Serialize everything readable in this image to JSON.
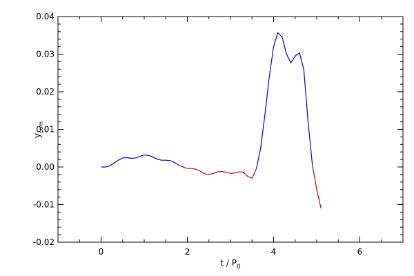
{
  "chart_data": {
    "type": "line",
    "xlabel": {
      "text": "t / P",
      "sub": "0"
    },
    "ylabel": {
      "text": "y",
      "sub": "com"
    },
    "x": [
      0,
      0.1,
      0.2,
      0.3,
      0.4,
      0.5,
      0.6,
      0.7,
      0.8,
      0.9,
      1.0,
      1.1,
      1.2,
      1.3,
      1.4,
      1.5,
      1.6,
      1.7,
      1.8,
      1.9,
      2.0,
      2.1,
      2.2,
      2.3,
      2.4,
      2.5,
      2.6,
      2.7,
      2.8,
      2.9,
      3.0,
      3.1,
      3.2,
      3.3,
      3.4,
      3.5,
      3.6,
      3.7,
      3.8,
      3.9,
      4.0,
      4.1,
      4.2,
      4.3,
      4.4,
      4.5,
      4.6,
      4.7,
      4.8,
      4.9,
      5.0,
      5.1
    ],
    "series": [
      {
        "color": "#0000cc",
        "values": [
          0,
          0,
          0.0003,
          0.001,
          0.0018,
          0.0024,
          0.0025,
          0.0023,
          0.0024,
          0.0028,
          0.0032,
          0.0031,
          0.0026,
          0.0021,
          0.0018,
          0.0018,
          0.0017,
          0.0012,
          0.0005,
          0,
          null,
          null,
          null,
          null,
          null,
          null,
          null,
          null,
          null,
          null,
          null,
          null,
          null,
          null,
          null,
          null,
          -0.0005,
          0.005,
          0.014,
          0.024,
          0.032,
          0.0357,
          0.0345,
          0.03,
          0.0277,
          0.0295,
          0.0303,
          0.026,
          0.012,
          0.0005,
          null,
          null
        ]
      },
      {
        "color": "#cc0000",
        "values": [
          null,
          null,
          null,
          null,
          null,
          null,
          null,
          null,
          null,
          null,
          null,
          null,
          null,
          null,
          null,
          null,
          null,
          null,
          null,
          0,
          -0.0004,
          -0.0004,
          -0.0006,
          -0.0011,
          -0.0018,
          -0.002,
          -0.0017,
          -0.0013,
          -0.0012,
          -0.0014,
          -0.0017,
          -0.0016,
          -0.0013,
          -0.0014,
          -0.0025,
          -0.003,
          -0.0005,
          null,
          null,
          null,
          null,
          null,
          null,
          null,
          null,
          null,
          null,
          null,
          null,
          0.0005,
          -0.006,
          -0.011
        ]
      }
    ],
    "xlim": [
      -1,
      7
    ],
    "xticks": [
      0,
      2,
      4,
      6
    ],
    "x_minor_intervals": 4,
    "ylim": [
      -0.02,
      0.04
    ],
    "yticks": [
      -0.02,
      -0.01,
      {
        "value": 0,
        "label": "0.00"
      },
      0.01,
      0.02,
      0.03,
      0.04
    ],
    "y_minor_intervals": 5
  }
}
